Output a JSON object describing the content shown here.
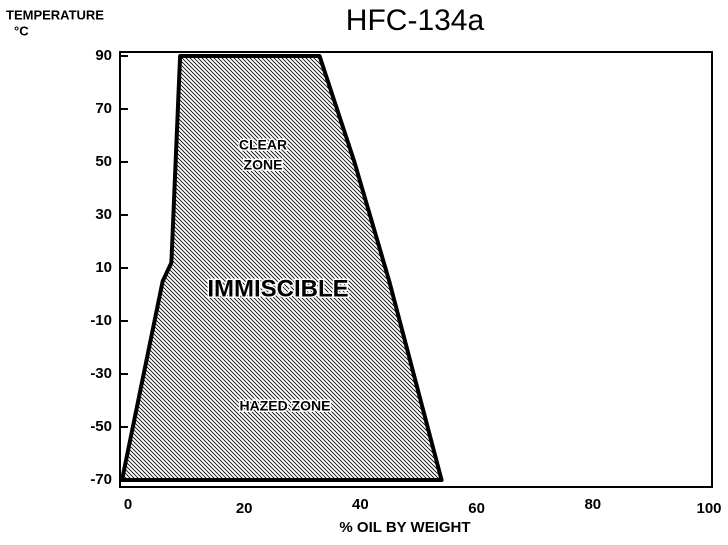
{
  "chart_data": {
    "type": "polygon",
    "title": "HFC-134a",
    "ylabel": [
      "TEMPERATURE",
      "°C"
    ],
    "xlabel": "% OIL BY WEIGHT",
    "annotations": [
      "CLEAR",
      "ZONE",
      "IMMISCIBLE",
      "HAZED ZONE"
    ],
    "x": [
      0,
      7,
      8.5,
      10,
      34,
      40,
      46,
      55
    ],
    "y": [
      -70,
      5,
      12,
      90,
      90,
      50,
      5,
      -70
    ],
    "color": "#000000",
    "xlim": [
      0,
      100
    ],
    "xticks": [
      0,
      20,
      40,
      60,
      80,
      100
    ],
    "ylim": [
      -70,
      90
    ],
    "yticks": [
      90,
      70,
      50,
      30,
      10,
      -10,
      -30,
      -50,
      -70
    ]
  }
}
